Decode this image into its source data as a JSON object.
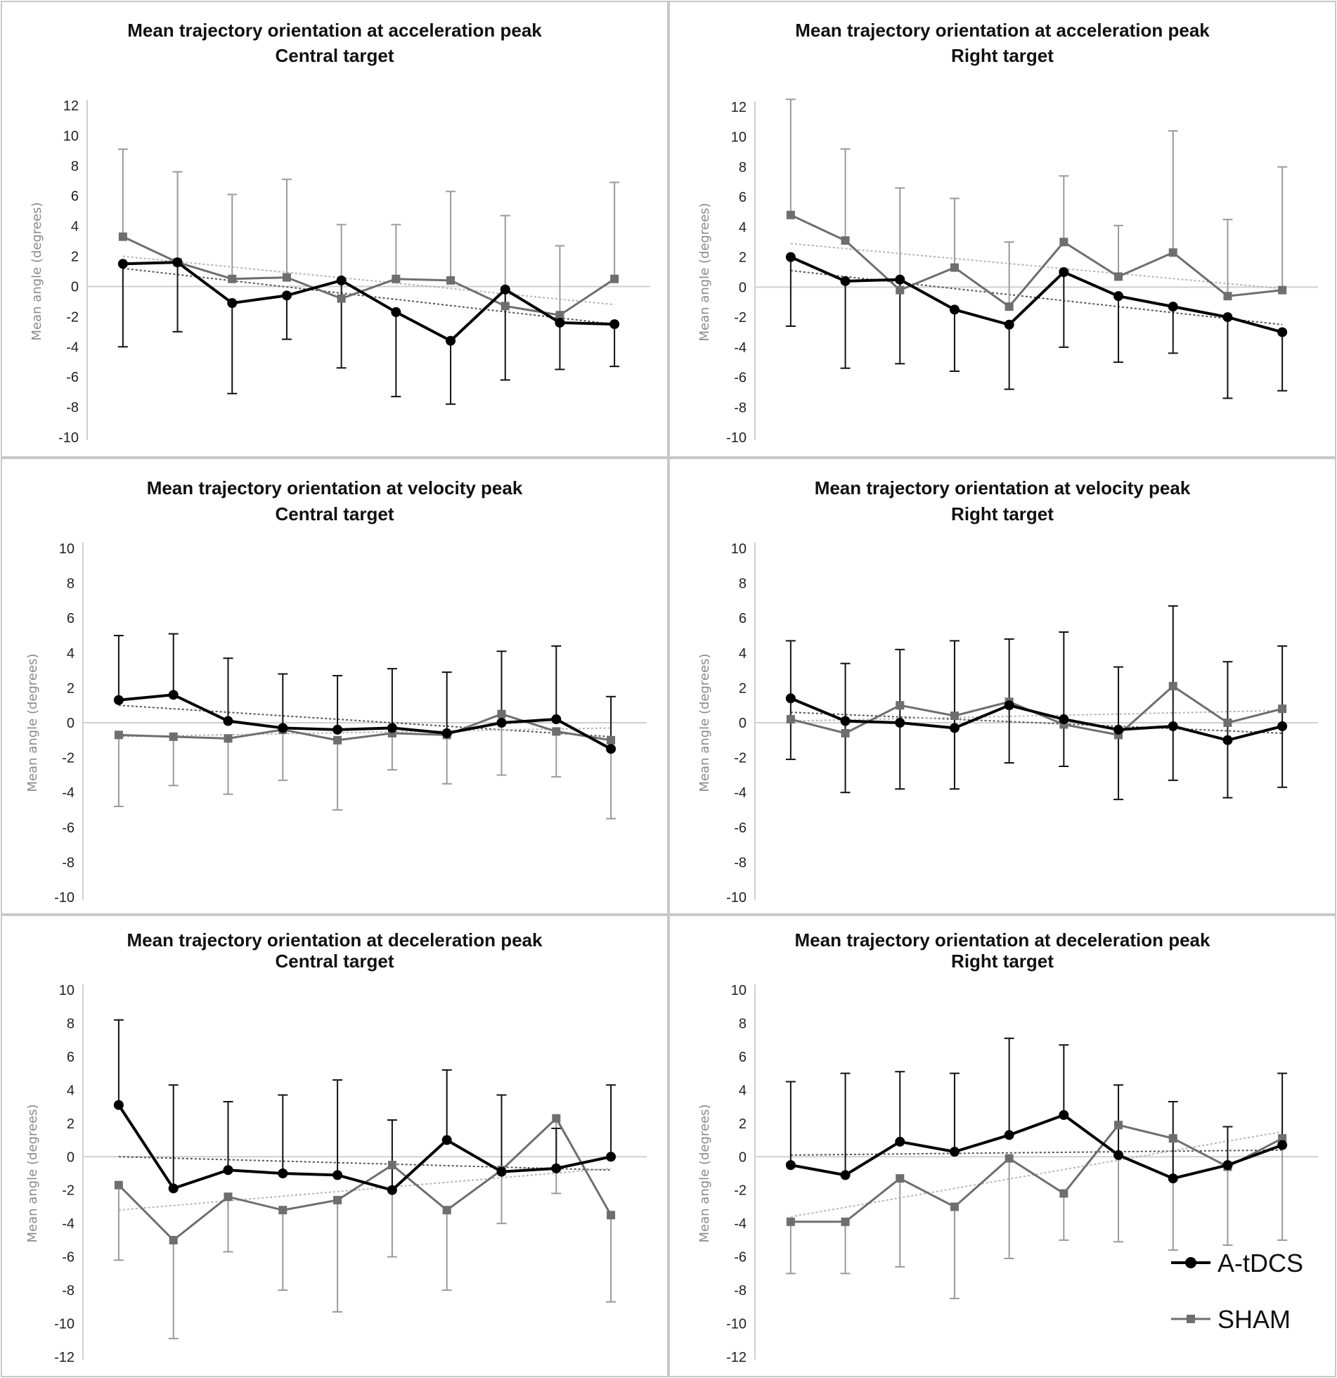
{
  "figure": {
    "ylabel": "Mean angle (degrees)",
    "legend": [
      {
        "name": "A-tDCS",
        "color": "#000000",
        "marker": "circle"
      },
      {
        "name": "SHAM",
        "color": "#6e6e6e",
        "marker": "square"
      }
    ]
  },
  "chart_data": [
    {
      "type": "line",
      "title": [
        "Mean trajectory orientation at acceleration peak",
        "Central target"
      ],
      "ylabel": "Mean angle (degrees)",
      "yticks": [
        12,
        10,
        8,
        6,
        4,
        2,
        0,
        -2,
        -4,
        -6,
        -8,
        -10
      ],
      "ylim": [
        -10,
        12
      ],
      "x": [
        1,
        2,
        3,
        4,
        5,
        6,
        7,
        8,
        9,
        10
      ],
      "series": [
        {
          "name": "A-tDCS",
          "values": [
            1.5,
            1.6,
            -1.1,
            -0.6,
            0.4,
            -1.7,
            -3.6,
            -0.2,
            -2.4,
            -2.5
          ],
          "error_upper": [
            null,
            null,
            null,
            null,
            null,
            null,
            null,
            null,
            null,
            null
          ],
          "error_lower": [
            -4.0,
            -3.0,
            -7.1,
            -3.5,
            -5.4,
            -7.3,
            -7.8,
            -6.2,
            -5.5,
            -5.3
          ],
          "trend": [
            1.2,
            -2.5
          ]
        },
        {
          "name": "SHAM",
          "values": [
            3.3,
            1.6,
            0.5,
            0.6,
            -0.8,
            0.5,
            0.4,
            -1.3,
            -1.9,
            0.5
          ],
          "error_upper": [
            9.1,
            7.6,
            6.1,
            7.1,
            4.1,
            4.1,
            6.3,
            4.7,
            2.7,
            6.9
          ],
          "error_lower": [
            null,
            null,
            null,
            null,
            null,
            null,
            null,
            null,
            null,
            null
          ],
          "trend": [
            2.0,
            -1.2
          ]
        }
      ]
    },
    {
      "type": "line",
      "title": [
        "Mean trajectory orientation at acceleration peak",
        "Right target"
      ],
      "ylabel": "Mean angle (degrees)",
      "yticks": [
        12,
        10,
        8,
        6,
        4,
        2,
        0,
        -2,
        -4,
        -6,
        -8,
        -10
      ],
      "ylim": [
        -10,
        12
      ],
      "x": [
        1,
        2,
        3,
        4,
        5,
        6,
        7,
        8,
        9,
        10
      ],
      "series": [
        {
          "name": "A-tDCS",
          "values": [
            2.0,
            0.4,
            0.5,
            -1.5,
            -2.5,
            1.0,
            -0.6,
            -1.3,
            -2.0,
            -3.0
          ],
          "error_upper": [
            null,
            null,
            null,
            null,
            null,
            null,
            null,
            null,
            null,
            null
          ],
          "error_lower": [
            -2.6,
            -5.4,
            -5.1,
            -5.6,
            -6.8,
            -4.0,
            -5.0,
            -4.4,
            -7.4,
            -6.9
          ],
          "trend": [
            1.1,
            -2.5
          ]
        },
        {
          "name": "SHAM",
          "values": [
            4.8,
            3.1,
            -0.2,
            1.3,
            -1.3,
            3.0,
            0.7,
            2.3,
            -0.6,
            -0.2
          ],
          "error_upper": [
            12.5,
            9.2,
            6.6,
            5.9,
            3.0,
            7.4,
            4.1,
            10.4,
            4.5,
            8.0
          ],
          "error_lower": [
            null,
            null,
            null,
            null,
            null,
            null,
            null,
            null,
            null,
            null
          ],
          "trend": [
            2.9,
            -0.1
          ]
        }
      ]
    },
    {
      "type": "line",
      "title": [
        "Mean trajectory orientation at velocity peak",
        "Central target"
      ],
      "ylabel": "Mean angle (degrees)",
      "yticks": [
        10,
        8,
        6,
        4,
        2,
        0,
        -2,
        -4,
        -6,
        -8,
        -10
      ],
      "ylim": [
        -10,
        10
      ],
      "x": [
        1,
        2,
        3,
        4,
        5,
        6,
        7,
        8,
        9,
        10
      ],
      "series": [
        {
          "name": "A-tDCS",
          "values": [
            1.3,
            1.6,
            0.1,
            -0.3,
            -0.4,
            -0.3,
            -0.6,
            0.0,
            0.2,
            -1.5
          ],
          "error_upper": [
            5.0,
            5.1,
            3.7,
            2.8,
            2.7,
            3.1,
            2.9,
            4.1,
            4.4,
            1.5
          ],
          "error_lower": [
            null,
            null,
            null,
            null,
            null,
            null,
            null,
            null,
            null,
            null
          ],
          "trend": [
            1.0,
            -0.8
          ]
        },
        {
          "name": "SHAM",
          "values": [
            -0.7,
            -0.8,
            -0.9,
            -0.4,
            -1.0,
            -0.6,
            -0.7,
            0.5,
            -0.5,
            -1.0
          ],
          "error_upper": [
            null,
            null,
            null,
            null,
            null,
            null,
            null,
            null,
            null,
            null
          ],
          "error_lower": [
            -4.8,
            -3.6,
            -4.1,
            -3.3,
            -5.0,
            -2.7,
            -3.5,
            -3.0,
            -3.1,
            -5.5
          ],
          "trend": [
            -0.8,
            -0.3
          ]
        }
      ]
    },
    {
      "type": "line",
      "title": [
        "Mean trajectory orientation at velocity peak",
        "Right target"
      ],
      "ylabel": "Mean angle (degrees)",
      "yticks": [
        10,
        8,
        6,
        4,
        2,
        0,
        -2,
        -4,
        -6,
        -8,
        -10
      ],
      "ylim": [
        -10,
        10
      ],
      "x": [
        1,
        2,
        3,
        4,
        5,
        6,
        7,
        8,
        9,
        10
      ],
      "series": [
        {
          "name": "A-tDCS",
          "values": [
            1.4,
            0.1,
            0.0,
            -0.3,
            1.0,
            0.2,
            -0.4,
            -0.2,
            -1.0,
            -0.2
          ],
          "error_upper": [
            4.7,
            3.4,
            4.2,
            4.7,
            4.8,
            5.2,
            3.2,
            6.7,
            3.5,
            4.4
          ],
          "error_lower": [
            -2.1,
            -4.0,
            -3.8,
            -3.8,
            -2.3,
            -2.5,
            -4.4,
            -3.3,
            -4.3,
            -3.7
          ],
          "trend": [
            0.6,
            -0.6
          ]
        },
        {
          "name": "SHAM",
          "values": [
            0.2,
            -0.6,
            1.0,
            0.4,
            1.2,
            -0.1,
            -0.7,
            2.1,
            0.0,
            0.8
          ],
          "error_upper": [
            null,
            null,
            null,
            null,
            null,
            null,
            null,
            null,
            null,
            null
          ],
          "error_lower": [
            null,
            null,
            null,
            null,
            null,
            null,
            null,
            null,
            null,
            null
          ],
          "trend": [
            0.1,
            0.7
          ]
        }
      ]
    },
    {
      "type": "line",
      "title": [
        "Mean trajectory orientation at deceleration peak",
        "Central target"
      ],
      "ylabel": "Mean angle (degrees)",
      "yticks": [
        10,
        8,
        6,
        4,
        2,
        0,
        -2,
        -4,
        -6,
        -8,
        -10,
        -12
      ],
      "ylim": [
        -12,
        10
      ],
      "x": [
        1,
        2,
        3,
        4,
        5,
        6,
        7,
        8,
        9,
        10
      ],
      "series": [
        {
          "name": "A-tDCS",
          "values": [
            3.1,
            -1.9,
            -0.8,
            -1.0,
            -1.1,
            -2.0,
            1.0,
            -0.9,
            -0.7,
            0.0
          ],
          "error_upper": [
            8.2,
            4.3,
            3.3,
            3.7,
            4.6,
            2.2,
            5.2,
            3.7,
            1.7,
            4.3
          ],
          "error_lower": [
            null,
            null,
            null,
            null,
            null,
            null,
            null,
            null,
            null,
            null
          ],
          "trend": [
            0.0,
            -0.8
          ]
        },
        {
          "name": "SHAM",
          "values": [
            -1.7,
            -5.0,
            -2.4,
            -3.2,
            -2.6,
            -0.5,
            -3.2,
            -0.8,
            2.3,
            -3.5
          ],
          "error_upper": [
            null,
            null,
            null,
            null,
            null,
            null,
            null,
            null,
            null,
            null
          ],
          "error_lower": [
            -6.2,
            -10.9,
            -5.7,
            -8.0,
            -9.3,
            -6.0,
            -8.0,
            -4.0,
            -2.2,
            -8.7
          ],
          "trend": [
            -3.2,
            -0.7
          ]
        }
      ]
    },
    {
      "type": "line",
      "title": [
        "Mean trajectory orientation at deceleration peak",
        "Right target"
      ],
      "ylabel": "Mean angle (degrees)",
      "yticks": [
        10,
        8,
        6,
        4,
        2,
        0,
        -2,
        -4,
        -6,
        -8,
        -10,
        -12
      ],
      "ylim": [
        -12,
        10
      ],
      "x": [
        1,
        2,
        3,
        4,
        5,
        6,
        7,
        8,
        9,
        10
      ],
      "series": [
        {
          "name": "A-tDCS",
          "values": [
            -0.5,
            -1.1,
            0.9,
            0.3,
            1.3,
            2.5,
            0.1,
            -1.3,
            -0.5,
            0.7
          ],
          "error_upper": [
            4.5,
            5.0,
            5.1,
            5.0,
            7.1,
            6.7,
            4.3,
            3.3,
            1.8,
            5.0
          ],
          "error_lower": [
            null,
            null,
            null,
            null,
            null,
            null,
            null,
            null,
            null,
            null
          ],
          "trend": [
            0.1,
            0.4
          ]
        },
        {
          "name": "SHAM",
          "values": [
            -3.9,
            -3.9,
            -1.3,
            -3.0,
            -0.1,
            -2.2,
            1.9,
            1.1,
            -0.6,
            1.1
          ],
          "error_upper": [
            null,
            null,
            null,
            null,
            null,
            null,
            null,
            null,
            null,
            null
          ],
          "error_lower": [
            -7.0,
            -7.0,
            -6.6,
            -8.5,
            -6.1,
            -5.0,
            -5.1,
            -5.6,
            -5.3,
            -5.0
          ],
          "trend": [
            -3.6,
            1.5
          ]
        }
      ]
    }
  ]
}
